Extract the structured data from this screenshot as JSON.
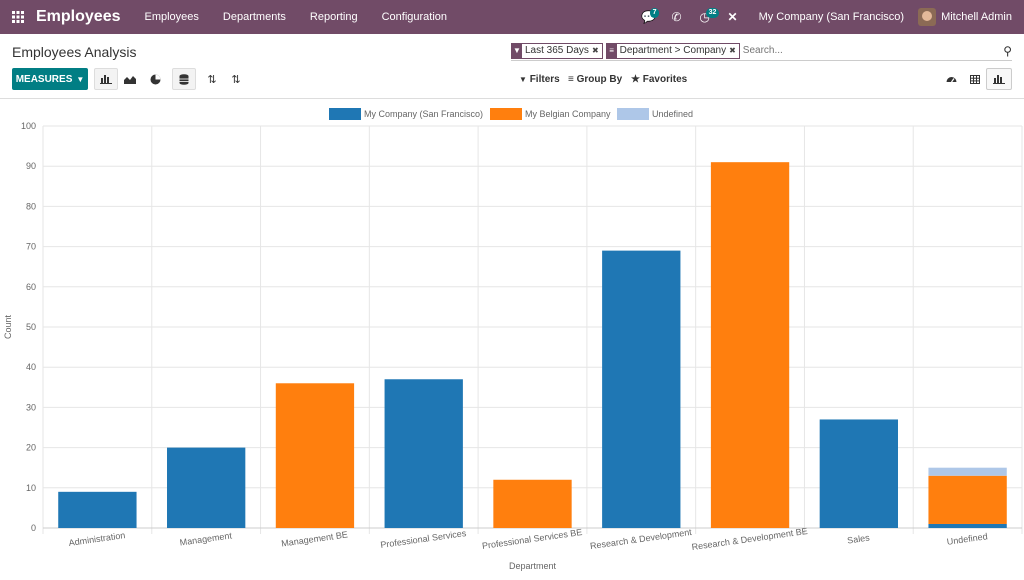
{
  "navbar": {
    "app_name": "Employees",
    "menu": [
      "Employees",
      "Departments",
      "Reporting",
      "Configuration"
    ],
    "messages_count": "7",
    "activities_count": "32",
    "company": "My Company (San Francisco)",
    "user": "Mitchell Admin"
  },
  "control_panel": {
    "title": "Employees Analysis",
    "facets": [
      {
        "label": "Last 365 Days",
        "icon": "filter-icon"
      },
      {
        "label": "Department > Company",
        "icon": "group-by-icon"
      }
    ],
    "search_placeholder": "Search...",
    "measures_label": "MEASURES",
    "filters_label": "Filters",
    "group_by_label": "Group By",
    "favorites_label": "Favorites"
  },
  "colors": {
    "brand": "#714b67",
    "accent": "#017e84",
    "series_sf": "#1f77b4",
    "series_be": "#ff7f0e",
    "series_undef": "#aec7e8"
  },
  "chart_data": {
    "type": "bar",
    "stacked": true,
    "categories": [
      "Administration",
      "Management",
      "Management BE",
      "Professional Services",
      "Professional Services BE",
      "Research & Development",
      "Research & Development BE",
      "Sales",
      "Undefined"
    ],
    "series": [
      {
        "name": "My Company (San Francisco)",
        "color": "#1f77b4",
        "values": [
          9,
          20,
          0,
          37,
          0,
          69,
          0,
          27,
          1
        ]
      },
      {
        "name": "My Belgian Company",
        "color": "#ff7f0e",
        "values": [
          0,
          0,
          36,
          0,
          12,
          0,
          91,
          0,
          12
        ]
      },
      {
        "name": "Undefined",
        "color": "#aec7e8",
        "values": [
          0,
          0,
          0,
          0,
          0,
          0,
          0,
          0,
          2
        ]
      }
    ],
    "title": "",
    "xlabel": "Department",
    "ylabel": "Count",
    "ylim": [
      0,
      100
    ],
    "yticks": [
      0,
      10,
      20,
      30,
      40,
      50,
      60,
      70,
      80,
      90,
      100
    ],
    "legend_position": "top-center",
    "grid": true
  }
}
